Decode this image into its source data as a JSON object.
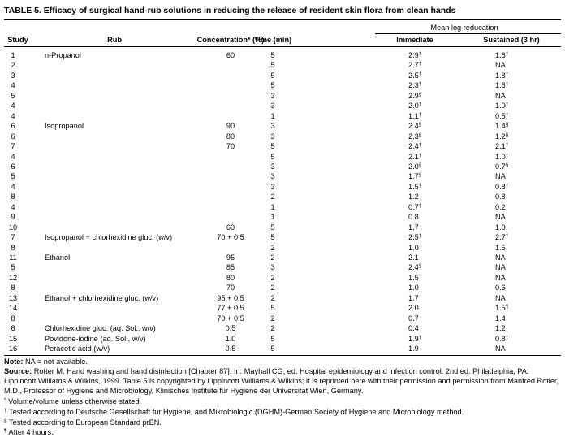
{
  "title": "TABLE 5. Efficacy of surgical hand-rub solutions in reducing the release of resident skin flora from clean hands",
  "table": {
    "group_header": "Mean log reducation",
    "columns": [
      "Study",
      "Rub",
      "Concentration* (%)",
      "Time (min)",
      "Immediate",
      "Sustained (3 hr)"
    ],
    "rows": [
      [
        "1",
        "n-Propanol",
        "60",
        "5",
        "2.9†",
        "1.6†"
      ],
      [
        "2",
        null,
        null,
        "5",
        "2.7†",
        "NA"
      ],
      [
        "3",
        null,
        null,
        "5",
        "2.5†",
        "1.8†"
      ],
      [
        "4",
        null,
        null,
        "5",
        "2.3†",
        "1.6†"
      ],
      [
        "5",
        null,
        null,
        "3",
        "2.9§",
        "NA"
      ],
      [
        "4",
        null,
        null,
        "3",
        "2.0†",
        "1.0†"
      ],
      [
        "4",
        null,
        null,
        "1",
        "1.1†",
        "0.5†"
      ],
      [
        "6",
        "Isopropanol",
        "90",
        "3",
        "2.4§",
        "1.4§"
      ],
      [
        "6",
        null,
        "80",
        "3",
        "2.3§",
        "1.2§"
      ],
      [
        "7",
        null,
        "70",
        "5",
        "2.4†",
        "2.1†"
      ],
      [
        "4",
        null,
        null,
        "5",
        "2.1†",
        "1.0†"
      ],
      [
        "6",
        null,
        null,
        "3",
        "2.0§",
        "0.7§"
      ],
      [
        "5",
        null,
        null,
        "3",
        "1.7§",
        "NA"
      ],
      [
        "4",
        null,
        null,
        "3",
        "1.5†",
        "0.8†"
      ],
      [
        "8",
        null,
        null,
        "2",
        "1.2",
        "0.8"
      ],
      [
        "4",
        null,
        null,
        "1",
        "0.7†",
        "0.2"
      ],
      [
        "9",
        null,
        null,
        "1",
        "0.8",
        "NA"
      ],
      [
        "10",
        null,
        "60",
        "5",
        "1.7",
        "1.0"
      ],
      [
        "7",
        "Isopropanol + chlorhexidine gluc. (w/v)",
        "70 + 0.5",
        "5",
        "2.5†",
        "2.7†"
      ],
      [
        "8",
        null,
        null,
        "2",
        "1.0",
        "1.5"
      ],
      [
        "11",
        "Ethanol",
        "95",
        "2",
        "2.1",
        "NA"
      ],
      [
        "5",
        null,
        "85",
        "3",
        "2.4§",
        "NA"
      ],
      [
        "12",
        null,
        "80",
        "2",
        "1.5",
        "NA"
      ],
      [
        "8",
        null,
        "70",
        "2",
        "1.0",
        "0.6"
      ],
      [
        "13",
        "Ethanol + chlorhexidine gluc. (w/v)",
        "95 + 0.5",
        "2",
        "1.7",
        "NA"
      ],
      [
        "14",
        null,
        "77 + 0.5",
        "5",
        "2.0",
        "1.5¶"
      ],
      [
        "8",
        null,
        "70 + 0.5",
        "2",
        "0.7",
        "1.4"
      ],
      [
        "8",
        "Chlorhexidine gluc. (aq. Sol., w/v)",
        "0.5",
        "2",
        "0.4",
        "1.2"
      ],
      [
        "15",
        "Povidone-iodine (aq. Sol., w/v)",
        "1.0",
        "5",
        "1.9†",
        "0.8†"
      ],
      [
        "16",
        "Peracetic acid (w/v)",
        "0.5",
        "5",
        "1.9",
        "NA"
      ]
    ]
  },
  "note": {
    "label": "Note:",
    "text": "NA = not available."
  },
  "source": {
    "label": "Source:",
    "text": "Rotter M. Hand washing and hand disinfection [Chapter 87]. In: Mayhall CG, ed. Hospital epidemiology and infection control. 2nd ed. Philadelphia, PA: Lippincott Williams & Wilkins, 1999. Table 5 is copyrighted by Lippincott Williams & Wilkins; it is reprinted here with their permission and permission from Manfred Rotler, M.D., Professor of Hygiene and Microbiology, Klinisches Institute für Hygiene der Universitat Wien, Germany."
  },
  "footnotes": [
    {
      "mark": "*",
      "text": "Volume/volume unless otherwise stated."
    },
    {
      "mark": "†",
      "text": "Tested according to Deutsche Gesellschaft fur Hygiene, and Mikrobiologic (DGHM)-German Society of Hygiene and Microbiology method."
    },
    {
      "mark": "§",
      "text": "Tested according to European Standard prEN."
    },
    {
      "mark": "¶",
      "text": "After 4 hours."
    }
  ]
}
